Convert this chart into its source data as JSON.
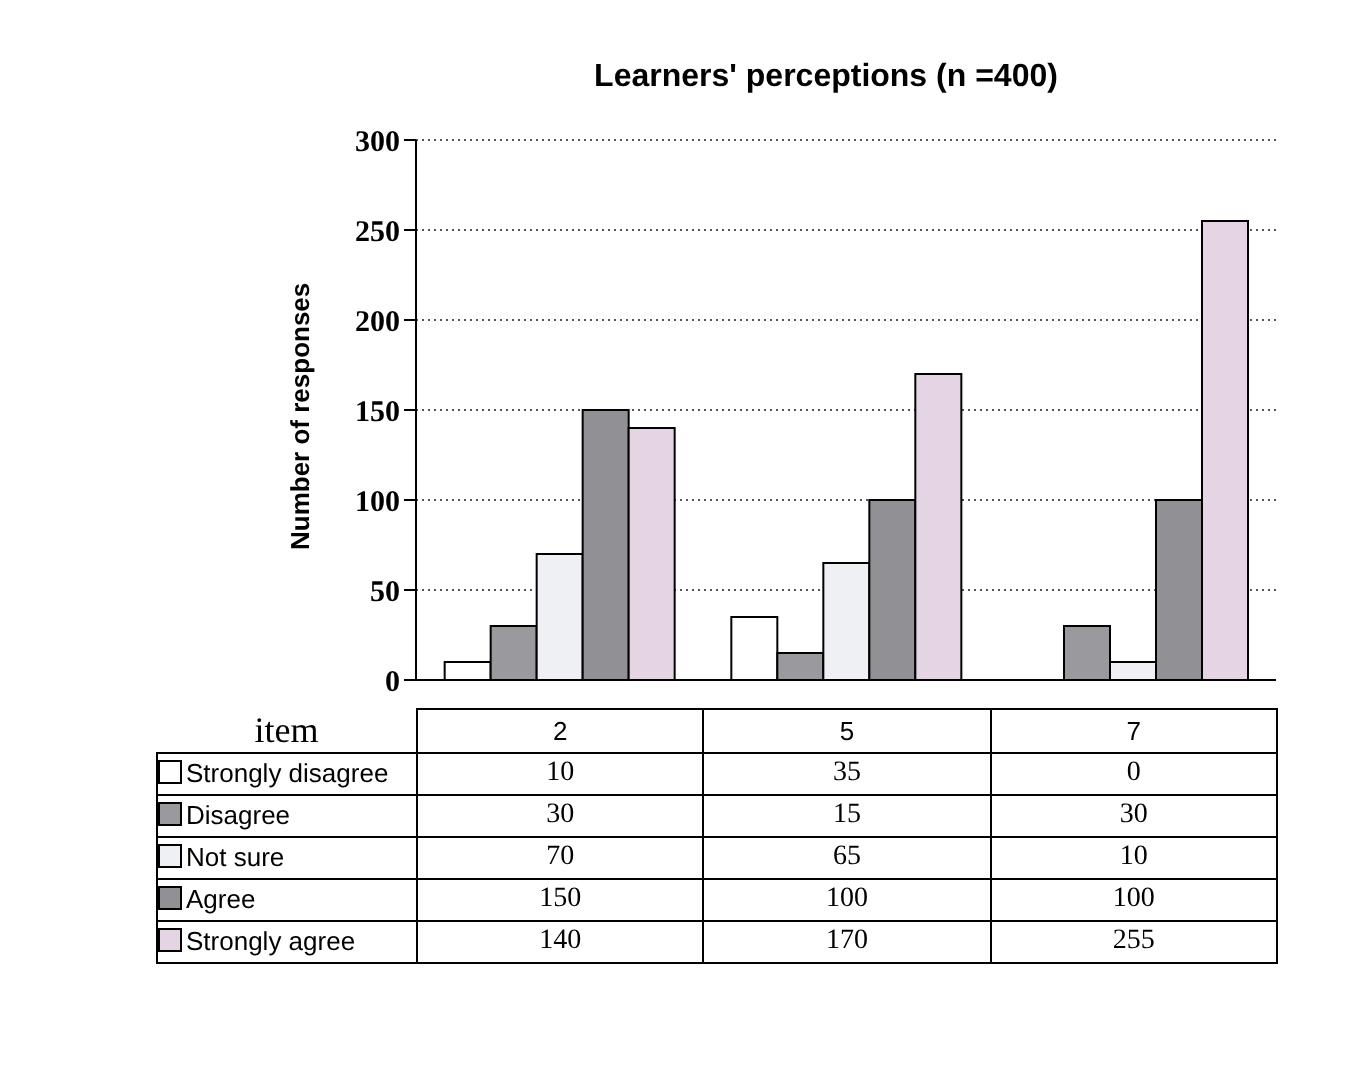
{
  "chart_data": {
    "type": "bar",
    "title": "Learners' perceptions (n =400)",
    "ylabel": "Number of responses",
    "xlabel": "item",
    "categories": [
      "2",
      "5",
      "7"
    ],
    "series": [
      {
        "name": "Strongly disagree",
        "color": "#ffffff",
        "values": [
          10,
          35,
          0
        ]
      },
      {
        "name": "Disagree",
        "color": "#9a9a9e",
        "values": [
          30,
          15,
          30
        ]
      },
      {
        "name": "Not sure",
        "color": "#eef0f4",
        "values": [
          70,
          65,
          10
        ]
      },
      {
        "name": "Agree",
        "color": "#909095",
        "values": [
          150,
          100,
          100
        ]
      },
      {
        "name": "Strongly agree",
        "color": "#e4d4e4",
        "values": [
          140,
          170,
          255
        ]
      }
    ],
    "ylim": [
      0,
      300
    ],
    "yticks": [
      0,
      50,
      100,
      150,
      200,
      250,
      300
    ],
    "grid": "y",
    "legend": "bottom",
    "data_labels": true
  }
}
